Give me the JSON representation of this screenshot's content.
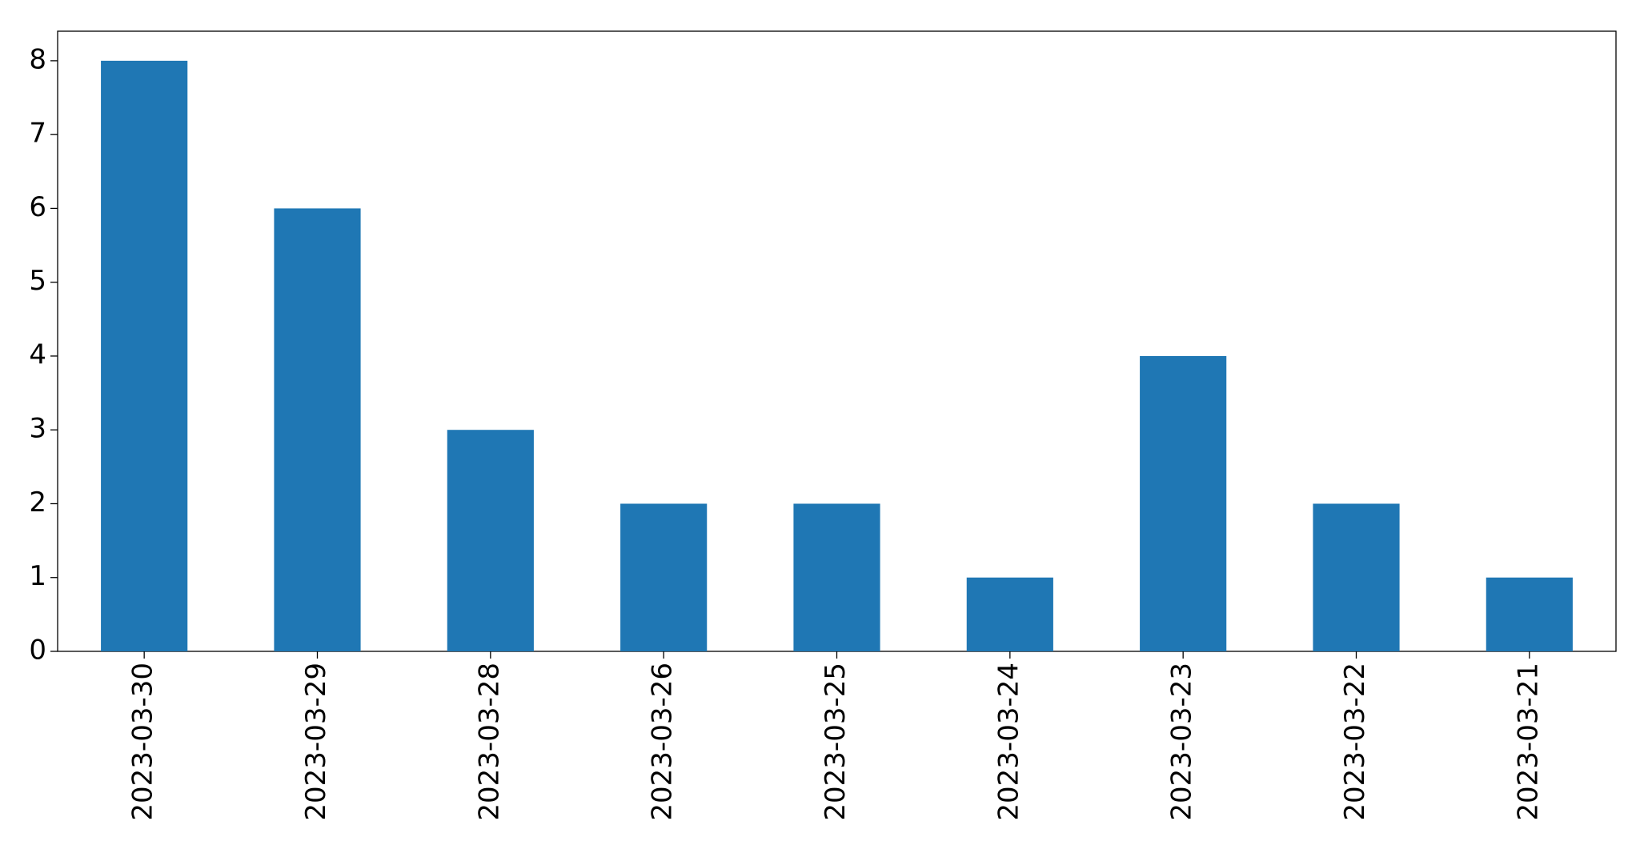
{
  "chart_data": {
    "type": "bar",
    "categories": [
      "2023-03-30",
      "2023-03-29",
      "2023-03-28",
      "2023-03-26",
      "2023-03-25",
      "2023-03-24",
      "2023-03-23",
      "2023-03-22",
      "2023-03-21"
    ],
    "values": [
      8,
      6,
      3,
      2,
      2,
      1,
      4,
      2,
      1
    ],
    "color": "#1f77b4",
    "ylim": [
      0,
      8.4
    ],
    "yticks": [
      0,
      1,
      2,
      3,
      4,
      5,
      6,
      7,
      8
    ],
    "grid": false
  }
}
